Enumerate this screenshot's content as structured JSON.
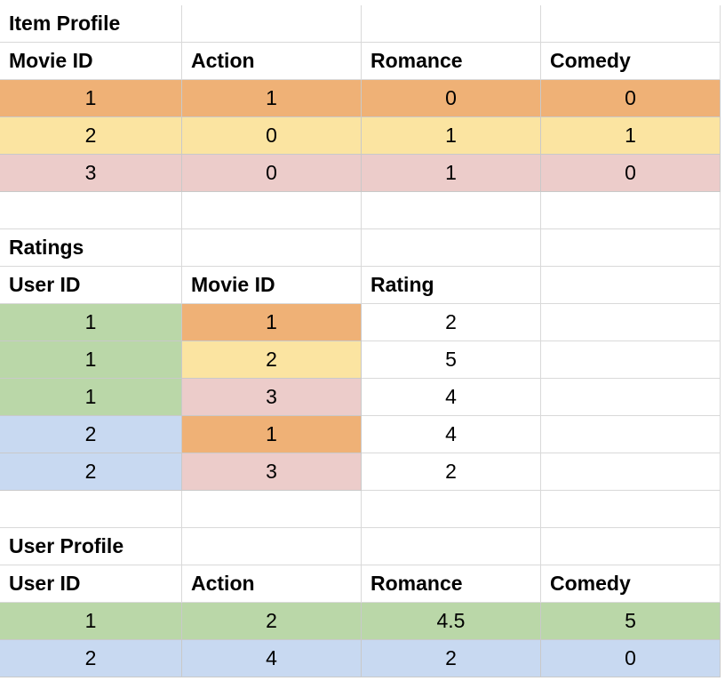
{
  "colors": {
    "orange": "#efb176",
    "yellow": "#fbe4a1",
    "pink": "#ecccca",
    "green": "#bad7a8",
    "blue": "#c8d9f1",
    "white": "#ffffff",
    "grid": "#d9d9d9"
  },
  "rows": [
    [
      {
        "text": "Item Profile",
        "style": "bold"
      },
      {
        "text": ""
      },
      {
        "text": ""
      },
      {
        "text": ""
      }
    ],
    [
      {
        "text": "Movie ID",
        "style": "bold"
      },
      {
        "text": "Action",
        "style": "bold"
      },
      {
        "text": "Romance",
        "style": "bold"
      },
      {
        "text": "Comedy",
        "style": "bold"
      }
    ],
    [
      {
        "text": "1",
        "style": "num",
        "fill": "orange"
      },
      {
        "text": "1",
        "style": "num",
        "fill": "orange"
      },
      {
        "text": "0",
        "style": "num",
        "fill": "orange"
      },
      {
        "text": "0",
        "style": "num",
        "fill": "orange"
      }
    ],
    [
      {
        "text": "2",
        "style": "num",
        "fill": "yellow"
      },
      {
        "text": "0",
        "style": "num",
        "fill": "yellow"
      },
      {
        "text": "1",
        "style": "num",
        "fill": "yellow"
      },
      {
        "text": "1",
        "style": "num",
        "fill": "yellow"
      }
    ],
    [
      {
        "text": "3",
        "style": "num",
        "fill": "pink"
      },
      {
        "text": "0",
        "style": "num",
        "fill": "pink"
      },
      {
        "text": "1",
        "style": "num",
        "fill": "pink"
      },
      {
        "text": "0",
        "style": "num",
        "fill": "pink"
      }
    ],
    [
      {
        "text": ""
      },
      {
        "text": ""
      },
      {
        "text": ""
      },
      {
        "text": ""
      }
    ],
    [
      {
        "text": "Ratings",
        "style": "bold"
      },
      {
        "text": ""
      },
      {
        "text": ""
      },
      {
        "text": ""
      }
    ],
    [
      {
        "text": "User ID",
        "style": "bold"
      },
      {
        "text": "Movie ID",
        "style": "bold"
      },
      {
        "text": "Rating",
        "style": "bold"
      },
      {
        "text": ""
      }
    ],
    [
      {
        "text": "1",
        "style": "num",
        "fill": "green"
      },
      {
        "text": "1",
        "style": "num",
        "fill": "orange"
      },
      {
        "text": "2",
        "style": "num"
      },
      {
        "text": ""
      }
    ],
    [
      {
        "text": "1",
        "style": "num",
        "fill": "green"
      },
      {
        "text": "2",
        "style": "num",
        "fill": "yellow"
      },
      {
        "text": "5",
        "style": "num"
      },
      {
        "text": ""
      }
    ],
    [
      {
        "text": "1",
        "style": "num",
        "fill": "green"
      },
      {
        "text": "3",
        "style": "num",
        "fill": "pink"
      },
      {
        "text": "4",
        "style": "num"
      },
      {
        "text": ""
      }
    ],
    [
      {
        "text": "2",
        "style": "num",
        "fill": "blue"
      },
      {
        "text": "1",
        "style": "num",
        "fill": "orange"
      },
      {
        "text": "4",
        "style": "num"
      },
      {
        "text": ""
      }
    ],
    [
      {
        "text": "2",
        "style": "num",
        "fill": "blue"
      },
      {
        "text": "3",
        "style": "num",
        "fill": "pink"
      },
      {
        "text": "2",
        "style": "num"
      },
      {
        "text": ""
      }
    ],
    [
      {
        "text": ""
      },
      {
        "text": ""
      },
      {
        "text": ""
      },
      {
        "text": ""
      }
    ],
    [
      {
        "text": "User Profile",
        "style": "bold"
      },
      {
        "text": ""
      },
      {
        "text": ""
      },
      {
        "text": ""
      }
    ],
    [
      {
        "text": "User ID",
        "style": "bold"
      },
      {
        "text": "Action",
        "style": "bold"
      },
      {
        "text": "Romance",
        "style": "bold"
      },
      {
        "text": "Comedy",
        "style": "bold"
      }
    ],
    [
      {
        "text": "1",
        "style": "num",
        "fill": "green"
      },
      {
        "text": "2",
        "style": "num",
        "fill": "green"
      },
      {
        "text": "4.5",
        "style": "num",
        "fill": "green"
      },
      {
        "text": "5",
        "style": "num",
        "fill": "green"
      }
    ],
    [
      {
        "text": "2",
        "style": "num",
        "fill": "blue"
      },
      {
        "text": "4",
        "style": "num",
        "fill": "blue"
      },
      {
        "text": "2",
        "style": "num",
        "fill": "blue"
      },
      {
        "text": "0",
        "style": "num",
        "fill": "blue"
      }
    ]
  ]
}
